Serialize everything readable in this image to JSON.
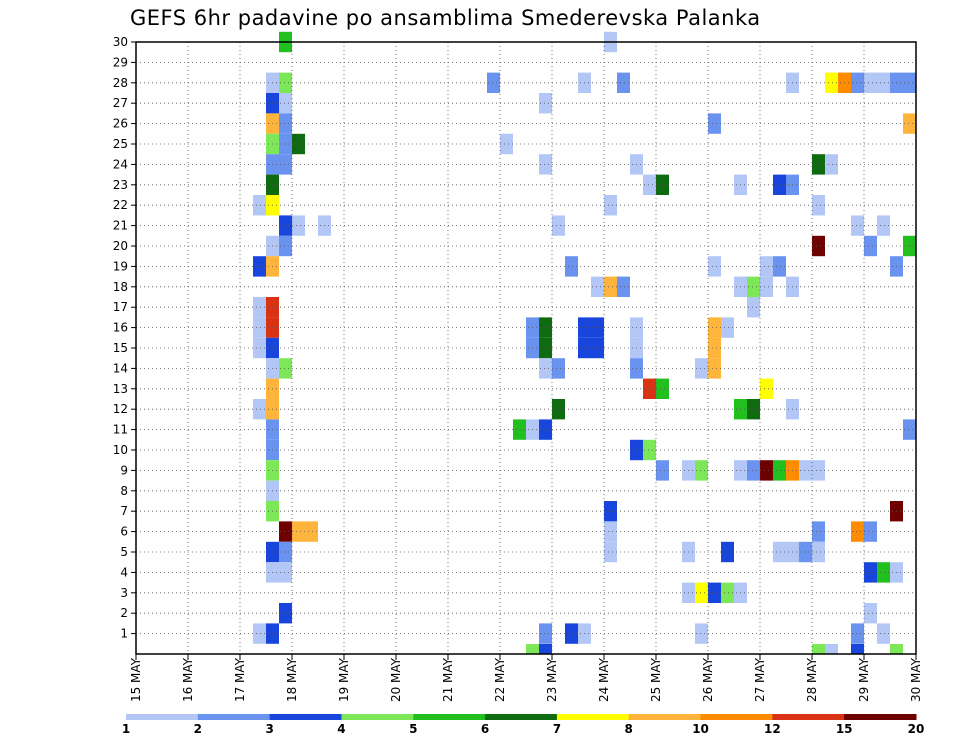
{
  "title": "GEFS 6hr padavine po ansamblima Smederevska Palanka",
  "chart_data": {
    "type": "heatmap",
    "title": "GEFS 6hr padavine po ansamblima Smederevska Palanka",
    "x_ticks": [
      "15 MAY",
      "16 MAY",
      "17 MAY",
      "18 MAY",
      "19 MAY",
      "20 MAY",
      "21 MAY",
      "22 MAY",
      "23 MAY",
      "24 MAY",
      "25 MAY",
      "26 MAY",
      "27 MAY",
      "28 MAY",
      "29 MAY",
      "30 MAY"
    ],
    "y_ticks": [
      1,
      2,
      3,
      4,
      5,
      6,
      7,
      8,
      9,
      10,
      11,
      12,
      13,
      14,
      15,
      16,
      17,
      18,
      19,
      20,
      21,
      22,
      23,
      24,
      25,
      26,
      27,
      28,
      29,
      30
    ],
    "grid": true,
    "color_scale": {
      "labels": [
        "1",
        "2",
        "3",
        "4",
        "5",
        "6",
        "7",
        "8",
        "10",
        "12",
        "15",
        "20"
      ],
      "colors": [
        "#b3c7f7",
        "#6a93f0",
        "#1846dc",
        "#7de857",
        "#22c01f",
        "#0f6b0f",
        "#ffff00",
        "#ffb43b",
        "#ff8c00",
        "#d93214",
        "#6e0000"
      ]
    },
    "cells": [
      {
        "row": 30,
        "col": 11,
        "c": 4
      },
      {
        "row": 30,
        "col": 36,
        "c": 0
      },
      {
        "row": 28,
        "col": 10,
        "c": 0
      },
      {
        "row": 28,
        "col": 11,
        "c": 3
      },
      {
        "row": 28,
        "col": 27,
        "c": 1
      },
      {
        "row": 28,
        "col": 34,
        "c": 0
      },
      {
        "row": 28,
        "col": 37,
        "c": 1
      },
      {
        "row": 28,
        "col": 50,
        "c": 0
      },
      {
        "row": 28,
        "col": 53,
        "c": 6
      },
      {
        "row": 28,
        "col": 54,
        "c": 8
      },
      {
        "row": 28,
        "col": 55,
        "c": 1
      },
      {
        "row": 28,
        "col": 56,
        "c": 0
      },
      {
        "row": 28,
        "col": 57,
        "c": 0
      },
      {
        "row": 28,
        "col": 58,
        "c": 1
      },
      {
        "row": 28,
        "col": 59,
        "c": 1
      },
      {
        "row": 27,
        "col": 10,
        "c": 2
      },
      {
        "row": 27,
        "col": 11,
        "c": 0
      },
      {
        "row": 27,
        "col": 31,
        "c": 0
      },
      {
        "row": 26,
        "col": 10,
        "c": 7
      },
      {
        "row": 26,
        "col": 11,
        "c": 1
      },
      {
        "row": 26,
        "col": 44,
        "c": 1
      },
      {
        "row": 26,
        "col": 59,
        "c": 7
      },
      {
        "row": 25,
        "col": 10,
        "c": 3
      },
      {
        "row": 25,
        "col": 11,
        "c": 1
      },
      {
        "row": 25,
        "col": 12,
        "c": 5
      },
      {
        "row": 25,
        "col": 28,
        "c": 0
      },
      {
        "row": 24,
        "col": 10,
        "c": 1
      },
      {
        "row": 24,
        "col": 11,
        "c": 1
      },
      {
        "row": 24,
        "col": 31,
        "c": 0
      },
      {
        "row": 24,
        "col": 38,
        "c": 0
      },
      {
        "row": 24,
        "col": 52,
        "c": 5
      },
      {
        "row": 24,
        "col": 53,
        "c": 0
      },
      {
        "row": 23,
        "col": 10,
        "c": 5
      },
      {
        "row": 23,
        "col": 39,
        "c": 0
      },
      {
        "row": 23,
        "col": 40,
        "c": 5
      },
      {
        "row": 23,
        "col": 46,
        "c": 0
      },
      {
        "row": 23,
        "col": 49,
        "c": 2
      },
      {
        "row": 23,
        "col": 50,
        "c": 1
      },
      {
        "row": 22,
        "col": 9,
        "c": 0
      },
      {
        "row": 22,
        "col": 10,
        "c": 6
      },
      {
        "row": 22,
        "col": 36,
        "c": 0
      },
      {
        "row": 22,
        "col": 52,
        "c": 0
      },
      {
        "row": 21,
        "col": 11,
        "c": 2
      },
      {
        "row": 21,
        "col": 12,
        "c": 0
      },
      {
        "row": 21,
        "col": 14,
        "c": 0
      },
      {
        "row": 21,
        "col": 32,
        "c": 0
      },
      {
        "row": 21,
        "col": 55,
        "c": 0
      },
      {
        "row": 21,
        "col": 57,
        "c": 0
      },
      {
        "row": 20,
        "col": 10,
        "c": 0
      },
      {
        "row": 20,
        "col": 11,
        "c": 1
      },
      {
        "row": 20,
        "col": 52,
        "c": 10
      },
      {
        "row": 20,
        "col": 56,
        "c": 1
      },
      {
        "row": 20,
        "col": 59,
        "c": 4
      },
      {
        "row": 19,
        "col": 9,
        "c": 2
      },
      {
        "row": 19,
        "col": 10,
        "c": 7
      },
      {
        "row": 19,
        "col": 33,
        "c": 1
      },
      {
        "row": 19,
        "col": 44,
        "c": 0
      },
      {
        "row": 19,
        "col": 48,
        "c": 0
      },
      {
        "row": 19,
        "col": 49,
        "c": 1
      },
      {
        "row": 19,
        "col": 58,
        "c": 1
      },
      {
        "row": 18,
        "col": 35,
        "c": 0
      },
      {
        "row": 18,
        "col": 36,
        "c": 7
      },
      {
        "row": 18,
        "col": 37,
        "c": 1
      },
      {
        "row": 18,
        "col": 46,
        "c": 0
      },
      {
        "row": 18,
        "col": 47,
        "c": 3
      },
      {
        "row": 18,
        "col": 48,
        "c": 0
      },
      {
        "row": 18,
        "col": 50,
        "c": 0
      },
      {
        "row": 17,
        "col": 9,
        "c": 0
      },
      {
        "row": 17,
        "col": 10,
        "c": 9
      },
      {
        "row": 17,
        "col": 47,
        "c": 0
      },
      {
        "row": 16,
        "col": 9,
        "c": 0
      },
      {
        "row": 16,
        "col": 10,
        "c": 9
      },
      {
        "row": 16,
        "col": 30,
        "c": 1
      },
      {
        "row": 16,
        "col": 31,
        "c": 5
      },
      {
        "row": 16,
        "col": 34,
        "c": 2
      },
      {
        "row": 16,
        "col": 35,
        "c": 2
      },
      {
        "row": 16,
        "col": 38,
        "c": 0
      },
      {
        "row": 16,
        "col": 44,
        "c": 7
      },
      {
        "row": 16,
        "col": 45,
        "c": 0
      },
      {
        "row": 15,
        "col": 9,
        "c": 0
      },
      {
        "row": 15,
        "col": 10,
        "c": 2
      },
      {
        "row": 15,
        "col": 30,
        "c": 1
      },
      {
        "row": 15,
        "col": 31,
        "c": 5
      },
      {
        "row": 15,
        "col": 34,
        "c": 2
      },
      {
        "row": 15,
        "col": 35,
        "c": 2
      },
      {
        "row": 15,
        "col": 38,
        "c": 0
      },
      {
        "row": 15,
        "col": 44,
        "c": 7
      },
      {
        "row": 14,
        "col": 10,
        "c": 0
      },
      {
        "row": 14,
        "col": 11,
        "c": 3
      },
      {
        "row": 14,
        "col": 31,
        "c": 0
      },
      {
        "row": 14,
        "col": 32,
        "c": 1
      },
      {
        "row": 14,
        "col": 38,
        "c": 1
      },
      {
        "row": 14,
        "col": 43,
        "c": 0
      },
      {
        "row": 14,
        "col": 44,
        "c": 7
      },
      {
        "row": 13,
        "col": 10,
        "c": 7
      },
      {
        "row": 13,
        "col": 39,
        "c": 9
      },
      {
        "row": 13,
        "col": 40,
        "c": 4
      },
      {
        "row": 13,
        "col": 48,
        "c": 6
      },
      {
        "row": 12,
        "col": 9,
        "c": 0
      },
      {
        "row": 12,
        "col": 10,
        "c": 7
      },
      {
        "row": 12,
        "col": 32,
        "c": 5
      },
      {
        "row": 12,
        "col": 46,
        "c": 4
      },
      {
        "row": 12,
        "col": 47,
        "c": 5
      },
      {
        "row": 12,
        "col": 50,
        "c": 0
      },
      {
        "row": 11,
        "col": 10,
        "c": 1
      },
      {
        "row": 11,
        "col": 29,
        "c": 4
      },
      {
        "row": 11,
        "col": 30,
        "c": 0
      },
      {
        "row": 11,
        "col": 31,
        "c": 2
      },
      {
        "row": 11,
        "col": 59,
        "c": 1
      },
      {
        "row": 10,
        "col": 10,
        "c": 1
      },
      {
        "row": 10,
        "col": 38,
        "c": 2
      },
      {
        "row": 10,
        "col": 39,
        "c": 3
      },
      {
        "row": 9,
        "col": 10,
        "c": 3
      },
      {
        "row": 9,
        "col": 40,
        "c": 1
      },
      {
        "row": 9,
        "col": 42,
        "c": 0
      },
      {
        "row": 9,
        "col": 43,
        "c": 3
      },
      {
        "row": 9,
        "col": 46,
        "c": 0
      },
      {
        "row": 9,
        "col": 47,
        "c": 1
      },
      {
        "row": 9,
        "col": 48,
        "c": 10
      },
      {
        "row": 9,
        "col": 49,
        "c": 4
      },
      {
        "row": 9,
        "col": 50,
        "c": 8
      },
      {
        "row": 9,
        "col": 51,
        "c": 0
      },
      {
        "row": 9,
        "col": 52,
        "c": 0
      },
      {
        "row": 8,
        "col": 10,
        "c": 0
      },
      {
        "row": 7,
        "col": 10,
        "c": 3
      },
      {
        "row": 7,
        "col": 36,
        "c": 2
      },
      {
        "row": 7,
        "col": 58,
        "c": 10
      },
      {
        "row": 6,
        "col": 11,
        "c": 10
      },
      {
        "row": 6,
        "col": 12,
        "c": 7
      },
      {
        "row": 6,
        "col": 13,
        "c": 7
      },
      {
        "row": 6,
        "col": 36,
        "c": 0
      },
      {
        "row": 6,
        "col": 52,
        "c": 1
      },
      {
        "row": 6,
        "col": 55,
        "c": 8
      },
      {
        "row": 6,
        "col": 56,
        "c": 1
      },
      {
        "row": 5,
        "col": 10,
        "c": 2
      },
      {
        "row": 5,
        "col": 11,
        "c": 1
      },
      {
        "row": 5,
        "col": 36,
        "c": 0
      },
      {
        "row": 5,
        "col": 42,
        "c": 0
      },
      {
        "row": 5,
        "col": 45,
        "c": 2
      },
      {
        "row": 5,
        "col": 49,
        "c": 0
      },
      {
        "row": 5,
        "col": 50,
        "c": 0
      },
      {
        "row": 5,
        "col": 51,
        "c": 1
      },
      {
        "row": 5,
        "col": 52,
        "c": 0
      },
      {
        "row": 4,
        "col": 10,
        "c": 0
      },
      {
        "row": 4,
        "col": 11,
        "c": 0
      },
      {
        "row": 4,
        "col": 56,
        "c": 2
      },
      {
        "row": 4,
        "col": 57,
        "c": 4
      },
      {
        "row": 4,
        "col": 58,
        "c": 0
      },
      {
        "row": 3,
        "col": 42,
        "c": 0
      },
      {
        "row": 3,
        "col": 43,
        "c": 6
      },
      {
        "row": 3,
        "col": 44,
        "c": 2
      },
      {
        "row": 3,
        "col": 45,
        "c": 3
      },
      {
        "row": 3,
        "col": 46,
        "c": 0
      },
      {
        "row": 2,
        "col": 11,
        "c": 2
      },
      {
        "row": 2,
        "col": 56,
        "c": 0
      },
      {
        "row": 1,
        "col": 9,
        "c": 0
      },
      {
        "row": 1,
        "col": 10,
        "c": 2
      },
      {
        "row": 1,
        "col": 31,
        "c": 1
      },
      {
        "row": 1,
        "col": 33,
        "c": 2
      },
      {
        "row": 1,
        "col": 34,
        "c": 0
      },
      {
        "row": 1,
        "col": 43,
        "c": 0
      },
      {
        "row": 1,
        "col": 55,
        "c": 1
      },
      {
        "row": 1,
        "col": 57,
        "c": 0
      },
      {
        "row": 0,
        "col": 30,
        "c": 3
      },
      {
        "row": 0,
        "col": 31,
        "c": 2
      },
      {
        "row": 0,
        "col": 52,
        "c": 3
      },
      {
        "row": 0,
        "col": 53,
        "c": 0
      },
      {
        "row": 0,
        "col": 55,
        "c": 2
      },
      {
        "row": 0,
        "col": 58,
        "c": 3
      }
    ]
  }
}
